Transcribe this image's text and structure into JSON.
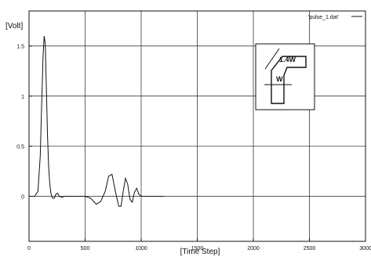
{
  "chart_data": {
    "type": "line",
    "ylabel": "[Volt]",
    "xlabel": "[Time Step]",
    "legend": {
      "entry": "'pulse_1.dat'",
      "placement": "top-right"
    },
    "xlim": [
      0,
      3000
    ],
    "ylim": [
      -0.45,
      1.85
    ],
    "x_ticks": [
      0,
      500,
      1000,
      1500,
      2000,
      2500,
      3000
    ],
    "x_tick_labels": [
      "0",
      "500",
      "1000",
      "1500",
      "2000",
      "2500",
      "3000"
    ],
    "y_ticks": [
      0,
      0.5,
      1,
      1.5
    ],
    "y_tick_labels": [
      "0",
      "0.5",
      "1",
      "1.5"
    ],
    "grid": true,
    "series": [
      {
        "name": "'pulse_1.dat'",
        "x": [
          0,
          50,
          80,
          100,
          115,
          125,
          135,
          145,
          155,
          165,
          175,
          185,
          195,
          210,
          225,
          240,
          255,
          270,
          290,
          320,
          350,
          400,
          450,
          500,
          550,
          600,
          640,
          680,
          710,
          740,
          770,
          800,
          820,
          840,
          860,
          880,
          900,
          920,
          940,
          960,
          980,
          1000,
          1050,
          1100,
          1150,
          1200
        ],
        "y": [
          0,
          0,
          0.05,
          0.4,
          1.0,
          1.4,
          1.6,
          1.52,
          1.05,
          0.6,
          0.3,
          0.12,
          0.03,
          -0.02,
          -0.02,
          0.02,
          0.03,
          0.0,
          -0.01,
          0.0,
          0.0,
          0.0,
          0.0,
          0.0,
          -0.02,
          -0.08,
          -0.05,
          0.05,
          0.2,
          0.22,
          0.05,
          -0.1,
          -0.1,
          0.05,
          0.18,
          0.12,
          -0.03,
          -0.06,
          0.04,
          0.08,
          0.02,
          0.0,
          0.0,
          0.0,
          0.0,
          0.0
        ]
      }
    ],
    "inset": {
      "labels": [
        "1.4W",
        "W"
      ]
    }
  }
}
